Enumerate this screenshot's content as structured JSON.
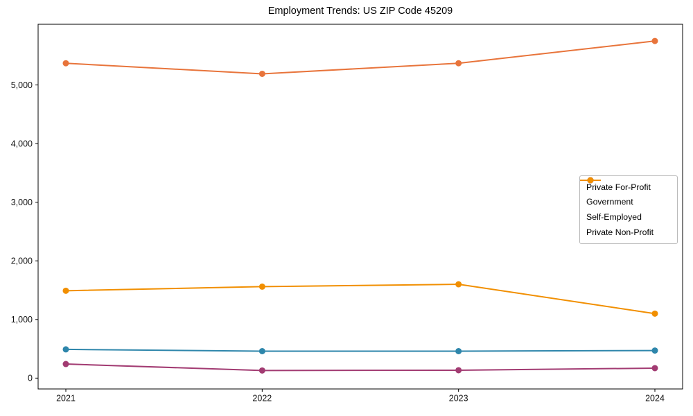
{
  "title": "Employment Trends: US ZIP Code 45209",
  "chart_data": {
    "type": "line",
    "title": "Employment Trends: US ZIP Code 45209",
    "xlabel": "",
    "ylabel": "",
    "x": [
      "2021",
      "2022",
      "2023",
      "2024"
    ],
    "series": [
      {
        "name": "Private For-Profit",
        "color": "#E8743B",
        "values": [
          5370,
          5190,
          5370,
          5750
        ]
      },
      {
        "name": "Government",
        "color": "#2E86AB",
        "values": [
          490,
          460,
          460,
          470
        ]
      },
      {
        "name": "Self-Employed",
        "color": "#A23B72",
        "values": [
          240,
          130,
          135,
          170
        ]
      },
      {
        "name": "Private Non-Profit",
        "color": "#F18F01",
        "values": [
          1490,
          1560,
          1600,
          1100
        ]
      }
    ],
    "y_ticks": [
      0,
      1000,
      2000,
      3000,
      4000,
      5000
    ],
    "y_tick_labels": [
      "0",
      "1,000",
      "2,000",
      "3,000",
      "4,000",
      "5,000"
    ],
    "ylim": [
      -185,
      6035
    ],
    "grid": false,
    "legend_position": "center right",
    "marker": "circle",
    "axis_color": "#000000",
    "background_color": "#ffffff"
  }
}
